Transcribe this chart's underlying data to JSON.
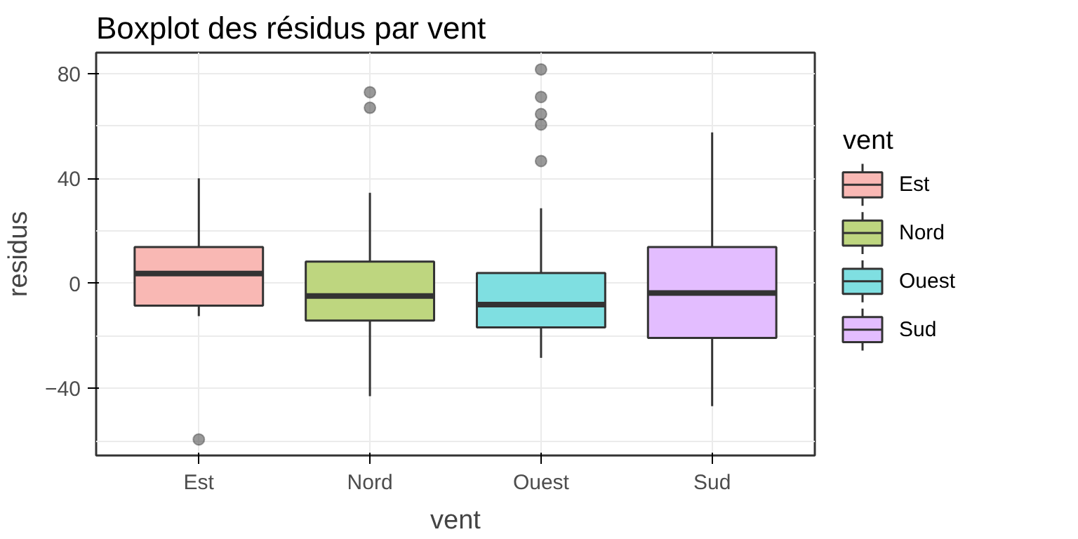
{
  "chart_data": {
    "type": "box",
    "title": "Boxplot des résidus par vent",
    "xlabel": "vent",
    "ylabel": "residus",
    "legend_title": "vent",
    "categories": [
      "Est",
      "Nord",
      "Ouest",
      "Sud"
    ],
    "series": [
      {
        "name": "Est",
        "color": "#f9b8b4",
        "boxes": [
          {
            "low": -12.5,
            "q1": -8.5,
            "median": 3.7,
            "q3": 13.8,
            "high": 40,
            "outliers": [
              -59.5
            ]
          },
          null,
          null,
          null
        ]
      },
      {
        "name": "Nord",
        "color": "#bed67f",
        "boxes": [
          null,
          {
            "low": -43,
            "q1": -14.2,
            "median": -4.8,
            "q3": 8.3,
            "high": 34.5,
            "outliers": [
              72.8,
              66.9
            ]
          },
          null,
          null
        ]
      },
      {
        "name": "Ouest",
        "color": "#7fdfe1",
        "boxes": [
          null,
          null,
          {
            "low": -28.4,
            "q1": -16.8,
            "median": -8.1,
            "q3": 3.9,
            "high": 28.6,
            "outliers": [
              81.5,
              71,
              64.5,
              60.5,
              46.6
            ]
          },
          null
        ]
      },
      {
        "name": "Sud",
        "color": "#e3bdff",
        "boxes": [
          null,
          null,
          null,
          {
            "low": -46.8,
            "q1": -20.8,
            "median": -3.7,
            "q3": 13.8,
            "high": 57.5
          }
        ]
      }
    ],
    "ylim": [
      -65.6,
      87.9
    ],
    "yticks": [
      -40,
      0,
      40,
      80
    ],
    "grid": true,
    "legend": "right"
  }
}
